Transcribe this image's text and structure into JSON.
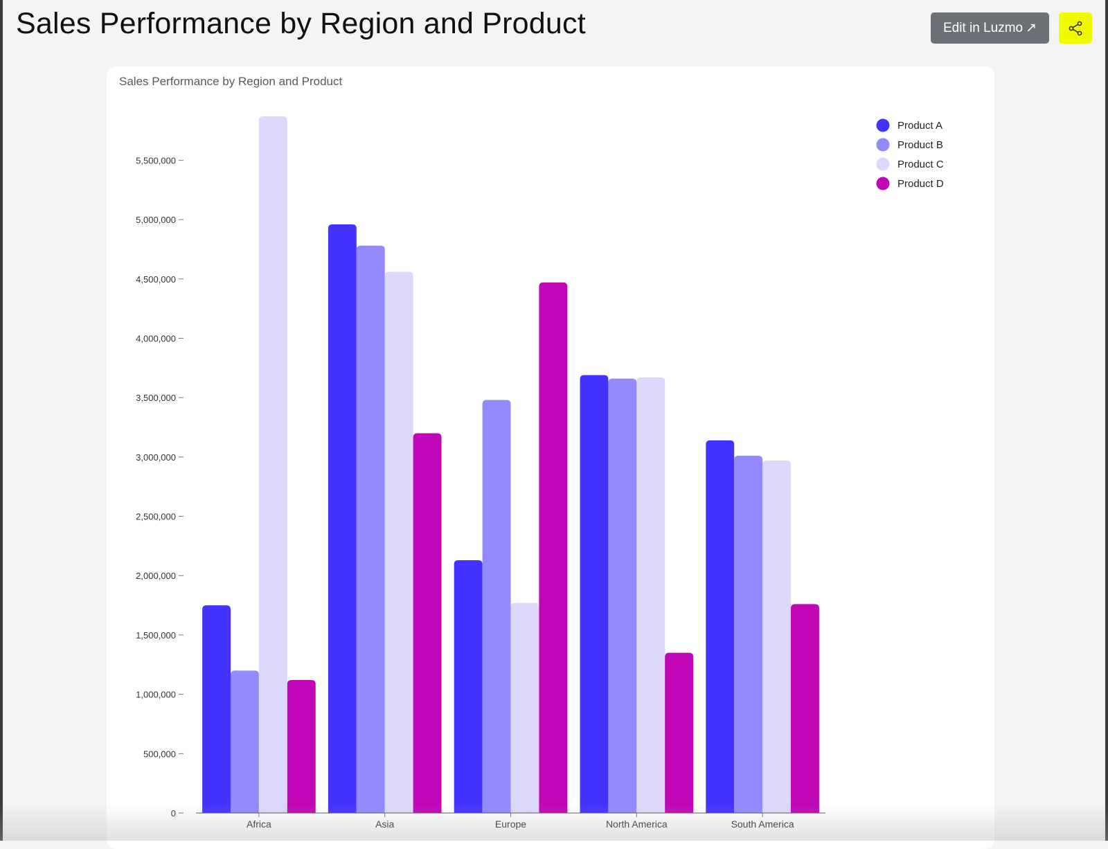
{
  "header": {
    "title": "Sales Performance by Region and Product",
    "edit_label": "Edit in Luzmo",
    "edit_arrow": "↗"
  },
  "colors": {
    "product_a": "#4433ff",
    "product_b": "#9189fd",
    "product_c": "#dcd8fb",
    "product_d": "#c006b6",
    "share_bg": "#f0fa00"
  },
  "chart_data": {
    "type": "bar",
    "title": "Sales Performance by Region and Product",
    "xlabel": "",
    "ylabel": "",
    "categories": [
      "Africa",
      "Asia",
      "Europe",
      "North America",
      "South America"
    ],
    "series": [
      {
        "name": "Product A",
        "color": "#4433ff",
        "values": [
          1750000,
          4960000,
          2130000,
          3690000,
          3140000
        ]
      },
      {
        "name": "Product B",
        "color": "#9189fd",
        "values": [
          1200000,
          4780000,
          3480000,
          3660000,
          3010000
        ]
      },
      {
        "name": "Product C",
        "color": "#dcd8fb",
        "values": [
          5870000,
          4560000,
          1770000,
          3670000,
          2970000
        ]
      },
      {
        "name": "Product D",
        "color": "#c006b6",
        "values": [
          1120000,
          3200000,
          4470000,
          1350000,
          1760000
        ]
      }
    ],
    "ylim": [
      0,
      5870000
    ],
    "yticks": [
      0,
      500000,
      1000000,
      1500000,
      2000000,
      2500000,
      3000000,
      3500000,
      4000000,
      4500000,
      5000000,
      5500000
    ],
    "ytick_labels": [
      "0",
      "500,000",
      "1,000,000",
      "1,500,000",
      "2,000,000",
      "2,500,000",
      "3,000,000",
      "3,500,000",
      "4,000,000",
      "4,500,000",
      "5,000,000",
      "5,500,000"
    ],
    "legend_position": "top-right",
    "grid": false
  }
}
